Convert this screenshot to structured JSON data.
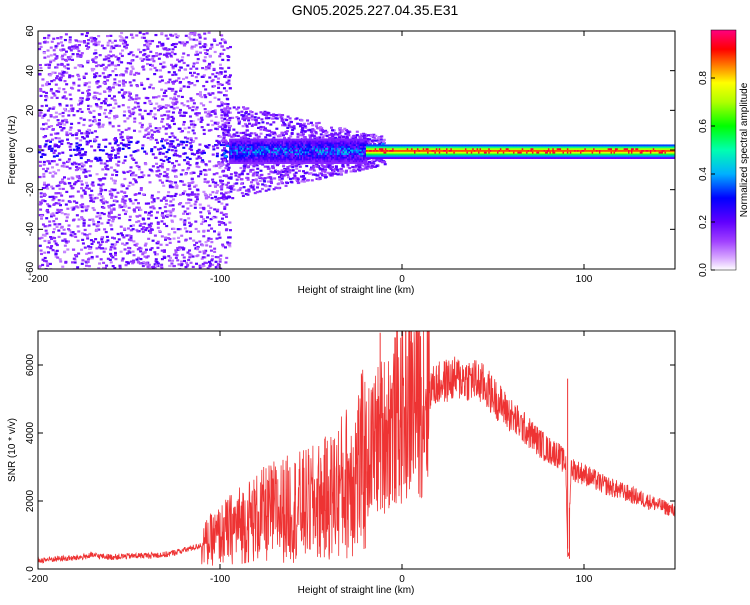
{
  "title": "GN05.2025.227.04.35.E31",
  "chart_data": [
    {
      "type": "heatmap",
      "xlabel": "Height of straight line (km)",
      "ylabel": "Frequency (Hz)",
      "xlim": [
        -200,
        150
      ],
      "ylim": [
        -60,
        60
      ],
      "xticks": [
        -200,
        -100,
        0,
        100
      ],
      "yticks": [
        60,
        40,
        20,
        0,
        -20,
        -40,
        -60
      ],
      "grid": false,
      "colorbar": {
        "label": "Normalized spectral amplitude",
        "range": [
          0,
          1
        ],
        "ticks": [
          0.0,
          0.2,
          0.4,
          0.6,
          0.8
        ],
        "colormap": [
          "#d8a8ff",
          "#7a00ff",
          "#0000ff",
          "#00e0ff",
          "#00ff00",
          "#ffff00",
          "#ff0000",
          "#ff0080"
        ]
      },
      "description_regions": [
        {
          "x_range": [
            -200,
            -95
          ],
          "freq_range": [
            -60,
            60
          ],
          "level": 0.12
        },
        {
          "x_range": [
            -95,
            -40
          ],
          "freq_range": [
            -15,
            15
          ],
          "level": 0.18
        },
        {
          "x_range": [
            -95,
            -20
          ],
          "freq_range": [
            -5,
            5
          ],
          "level": 0.4
        },
        {
          "x_range": [
            -20,
            150
          ],
          "freq_range": [
            -3,
            3
          ],
          "level": 0.6
        },
        {
          "x_range": [
            -20,
            150
          ],
          "freq_range": [
            -1,
            1
          ],
          "level": 0.9
        }
      ]
    },
    {
      "type": "line",
      "xlabel": "Height of straight line (km)",
      "ylabel": "SNR (10 * v/v)",
      "xlim": [
        -200,
        150
      ],
      "ylim": [
        0,
        7000
      ],
      "xticks": [
        -200,
        -100,
        0,
        100
      ],
      "yticks": [
        0,
        2000,
        4000,
        6000
      ],
      "grid": false,
      "color": "#ee3333",
      "series": [
        {
          "x": [
            -200,
            -190,
            -180,
            -170,
            -160,
            -150,
            -140,
            -130,
            -120,
            -110,
            -100,
            -90,
            -80,
            -70,
            -60,
            -50,
            -40,
            -30,
            -20,
            -15,
            -10,
            -5,
            0,
            5,
            10,
            15,
            20,
            25,
            30,
            35,
            40,
            45,
            50,
            55,
            60,
            70,
            80,
            85,
            90,
            91,
            93,
            95,
            100,
            110,
            120,
            130,
            140,
            150
          ],
          "y": [
            250,
            300,
            320,
            400,
            350,
            380,
            400,
            420,
            550,
            700,
            1000,
            1300,
            1500,
            1700,
            1800,
            1900,
            2100,
            2600,
            3200,
            3700,
            4000,
            4300,
            4600,
            4900,
            5100,
            5300,
            5450,
            5550,
            5600,
            5600,
            5550,
            5400,
            5100,
            4800,
            4500,
            4000,
            3500,
            3400,
            3100,
            600,
            3000,
            2900,
            2800,
            2500,
            2300,
            2100,
            1900,
            1700
          ]
        }
      ],
      "spikes": [
        {
          "x": -12,
          "y": 6950
        },
        {
          "x": 5,
          "y": 6700
        },
        {
          "x": 9,
          "y": 6950
        },
        {
          "x": 91,
          "y": 5600
        },
        {
          "x": 92,
          "y": 300
        }
      ]
    }
  ]
}
